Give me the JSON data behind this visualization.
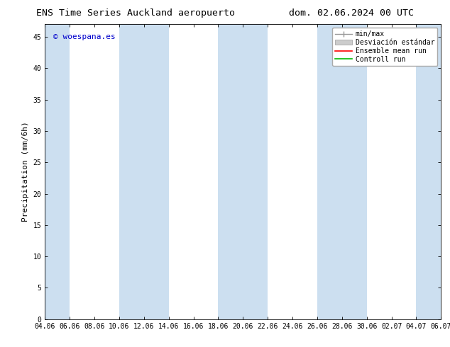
{
  "title_left": "ENS Time Series Auckland aeropuerto",
  "title_right": "dom. 02.06.2024 00 UTC",
  "ylabel": "Precipitation (mm/6h)",
  "watermark": "© woespana.es",
  "watermark_color": "#0000cc",
  "ylim": [
    0,
    47
  ],
  "yticks": [
    0,
    5,
    10,
    15,
    20,
    25,
    30,
    35,
    40,
    45
  ],
  "xtick_labels": [
    "04.06",
    "06.06",
    "08.06",
    "10.06",
    "12.06",
    "14.06",
    "16.06",
    "18.06",
    "20.06",
    "22.06",
    "24.06",
    "26.06",
    "28.06",
    "30.06",
    "02.07",
    "04.07",
    "06.07"
  ],
  "bg_color": "#ffffff",
  "plot_bg_color": "#ffffff",
  "shade_color": "#ccdff0",
  "shade_alpha": 1.0,
  "title_fontsize": 9.5,
  "tick_fontsize": 7,
  "ylabel_fontsize": 8,
  "watermark_fontsize": 8,
  "legend_fontsize": 7
}
